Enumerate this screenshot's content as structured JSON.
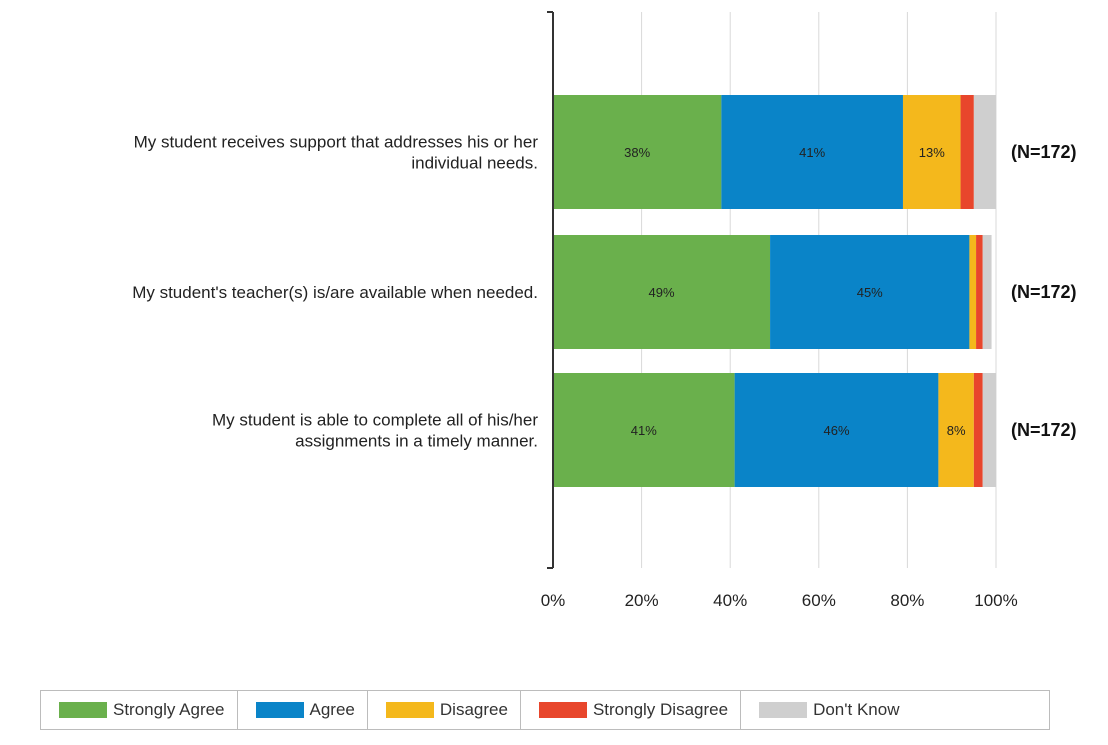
{
  "chart_data": {
    "type": "bar",
    "orientation": "horizontal",
    "stacked": true,
    "categories": [
      [
        "My student receives support that addresses his or her",
        "individual needs."
      ],
      [
        "My student's teacher(s) is/are available when needed."
      ],
      [
        "My student is able to complete all of his/her",
        "assignments in a timely manner."
      ]
    ],
    "series": [
      {
        "name": "Strongly Agree",
        "color": "#6ab04c",
        "values": [
          38,
          49,
          41
        ],
        "labels": [
          "38%",
          "49%",
          "41%"
        ]
      },
      {
        "name": "Agree",
        "color": "#0a84c8",
        "values": [
          41,
          45,
          46
        ],
        "labels": [
          "41%",
          "45%",
          "46%"
        ]
      },
      {
        "name": "Disagree",
        "color": "#f4b81c",
        "values": [
          13,
          1.5,
          8
        ],
        "labels": [
          "13%",
          "",
          "8%"
        ]
      },
      {
        "name": "Strongly Disagree",
        "color": "#e8462c",
        "values": [
          3,
          1.5,
          2
        ],
        "labels": [
          "",
          "",
          ""
        ]
      },
      {
        "name": "Don't Know",
        "color": "#cfcfcf",
        "values": [
          5,
          2,
          3
        ],
        "labels": [
          "",
          "",
          ""
        ]
      }
    ],
    "n_labels": [
      "(N=172)",
      "(N=172)",
      "(N=172)"
    ],
    "xlim": [
      0,
      100
    ],
    "xticks": [
      "0%",
      "20%",
      "40%",
      "60%",
      "80%",
      "100%"
    ],
    "grid": true,
    "legend_position": "bottom"
  }
}
